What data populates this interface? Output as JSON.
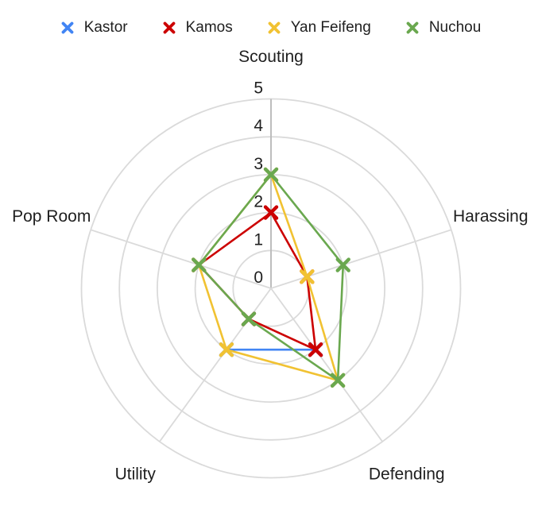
{
  "chart_data": {
    "type": "radar",
    "title": "",
    "axes": [
      "Scouting",
      "Harassing",
      "Defending",
      "Utility",
      "Pop Room"
    ],
    "scale": {
      "min": 0,
      "max": 5,
      "tick_labels": [
        "0",
        "1",
        "2",
        "3",
        "4",
        "5"
      ],
      "rings": 5
    },
    "series": [
      {
        "name": "Kastor",
        "color": "#4285f4",
        "values": [
          null,
          null,
          2,
          2,
          null
        ]
      },
      {
        "name": "Kamos",
        "color": "#cc0000",
        "values": [
          2,
          1,
          2,
          1,
          2
        ]
      },
      {
        "name": "Yan Feifeng",
        "color": "#f1c232",
        "values": [
          3,
          1,
          3,
          2,
          2
        ]
      },
      {
        "name": "Nuchou",
        "color": "#6aa84f",
        "values": [
          3,
          2,
          3,
          1,
          2
        ]
      }
    ],
    "legend_position": "top",
    "marker_shape": "x-cross",
    "grid": {
      "ring_color": "#dadada",
      "value_axis_color": "#bdbdbd",
      "grid_on": true
    },
    "text_color": "#1f1f1f"
  }
}
